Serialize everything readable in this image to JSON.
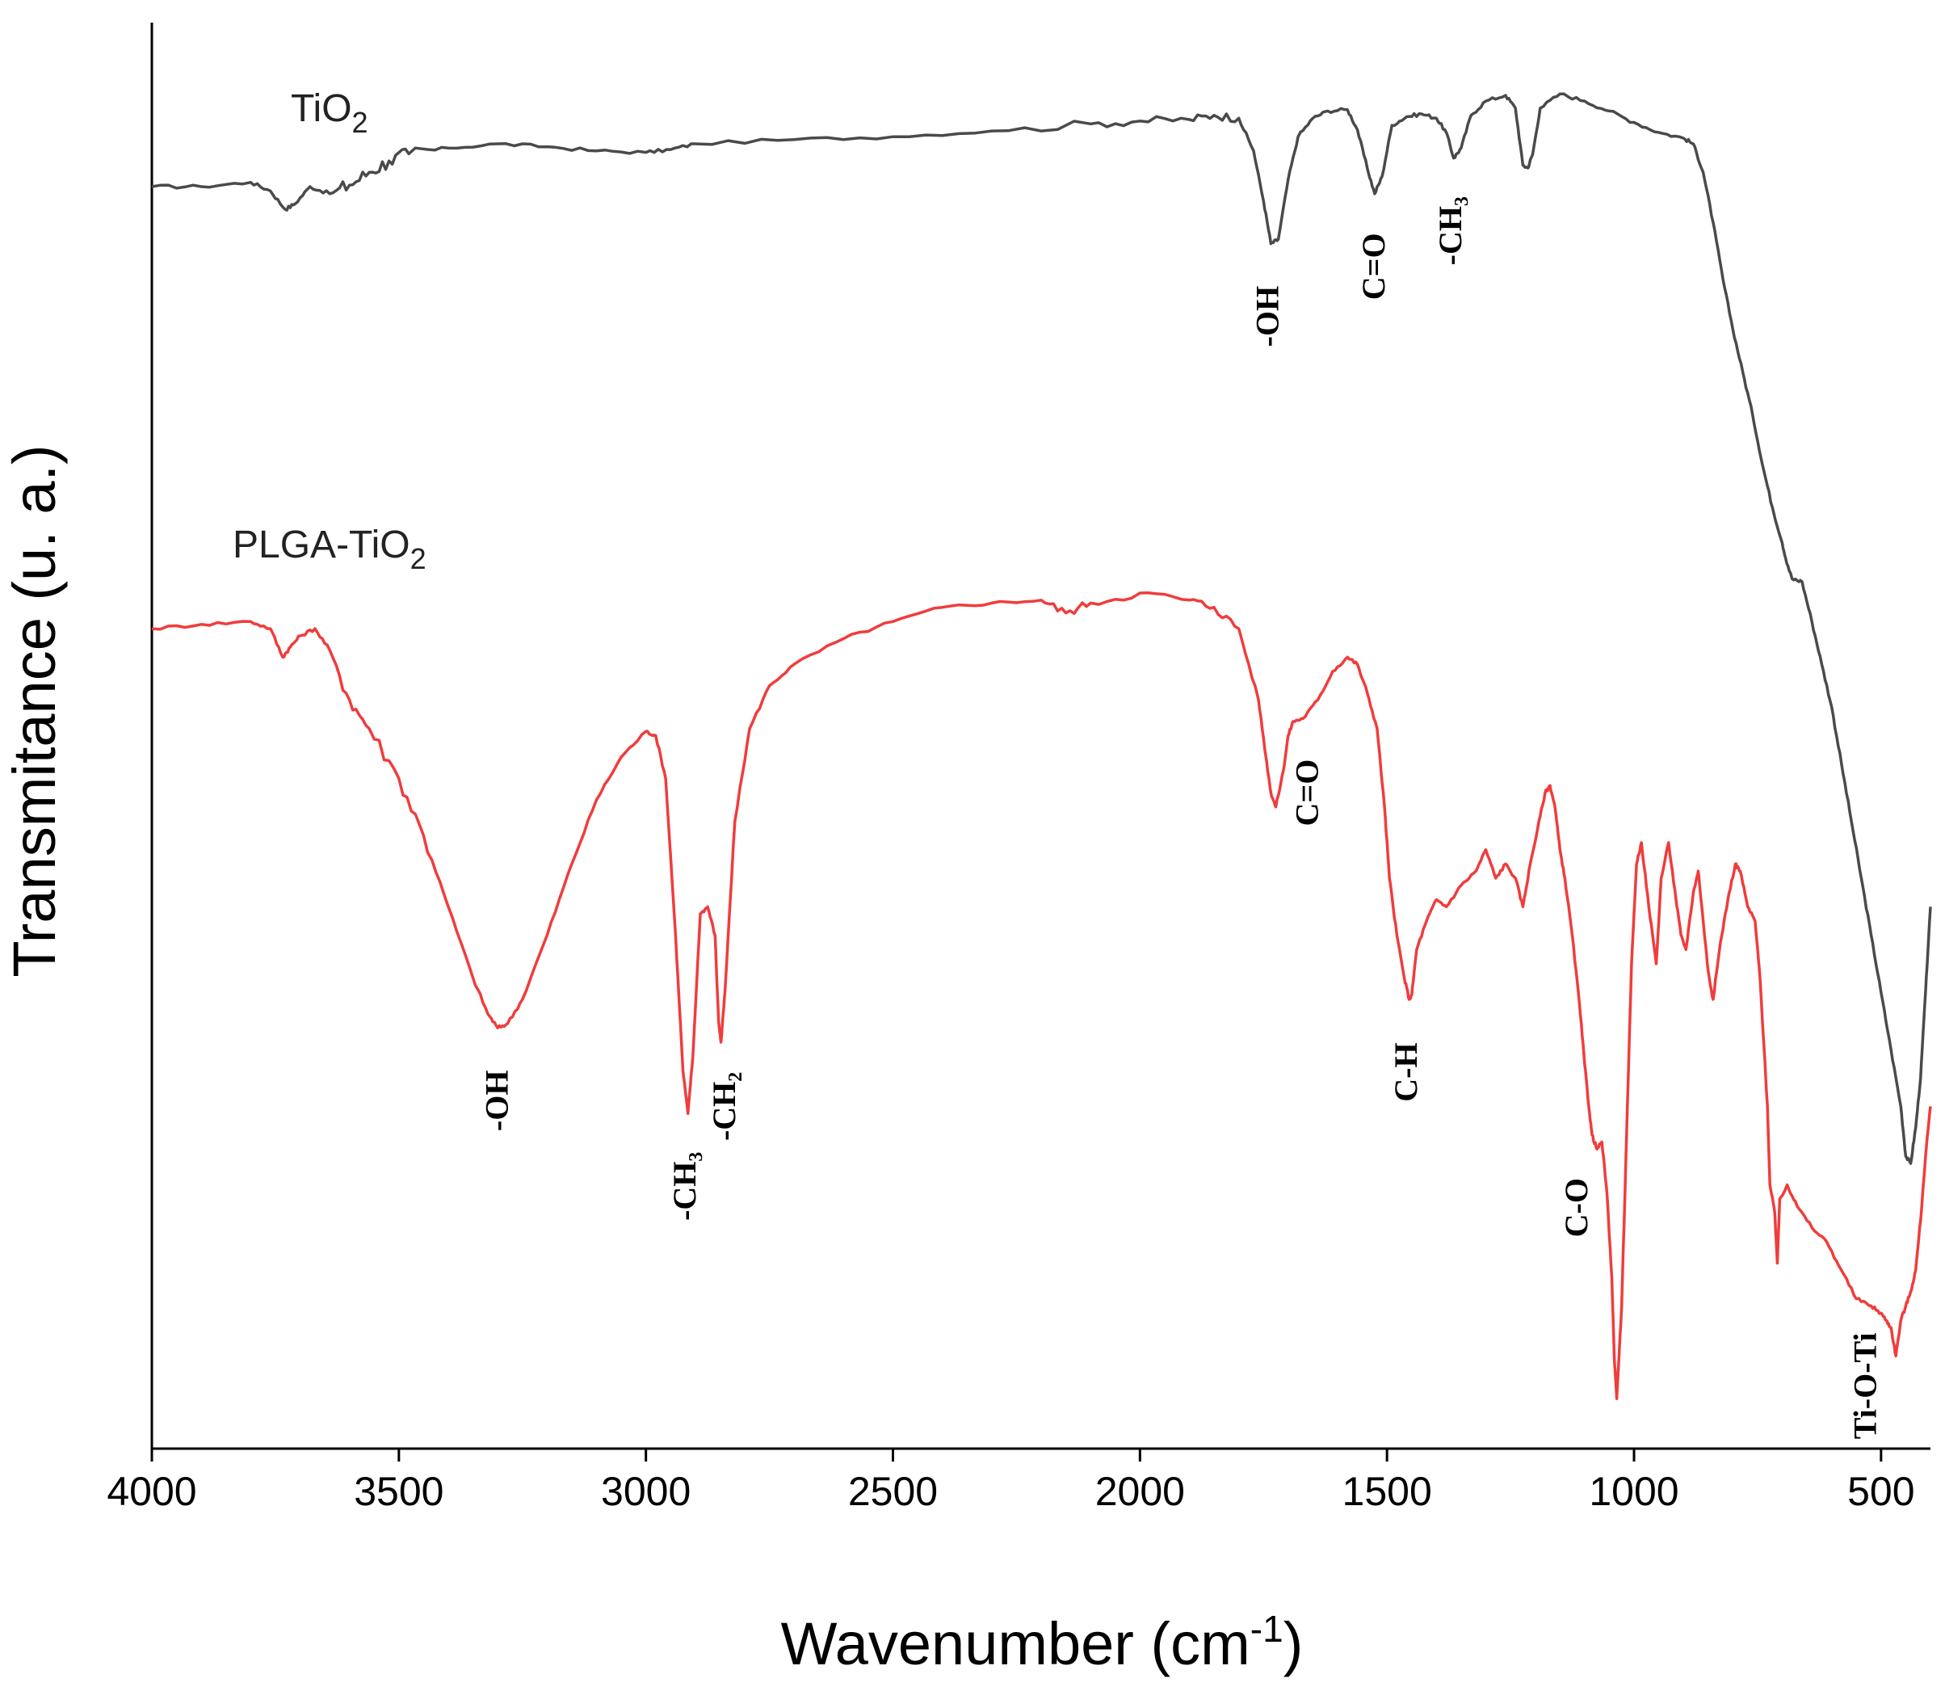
{
  "chart_data": {
    "type": "line",
    "title": "",
    "xlabel": "Wavenumber (cm",
    "xlabel_sup": "-1",
    "xlabel_close": ")",
    "ylabel": "Transmitance (u. a.)",
    "xlim": [
      4000,
      400
    ],
    "ylim": [
      0,
      100
    ],
    "x_ticks": [
      4000,
      3500,
      3000,
      2500,
      2000,
      1500,
      1000,
      500
    ],
    "x_tick_labels": [
      "4000",
      "3500",
      "3000",
      "2500",
      "2000",
      "1500",
      "1000",
      "500"
    ],
    "grid": false,
    "series": [
      {
        "name": "TiO",
        "name_sub": "2",
        "color": "#4a4a4a",
        "x": [
          4000,
          3900,
          3800,
          3760,
          3730,
          3710,
          3680,
          3640,
          3600,
          3560,
          3520,
          3480,
          3400,
          3300,
          3200,
          3100,
          3000,
          2950,
          2900,
          2700,
          2500,
          2300,
          2100,
          2000,
          1900,
          1850,
          1800,
          1770,
          1750,
          1735,
          1720,
          1700,
          1680,
          1650,
          1620,
          1580,
          1560,
          1540,
          1525,
          1510,
          1490,
          1460,
          1430,
          1400,
          1380,
          1365,
          1350,
          1330,
          1300,
          1260,
          1240,
          1225,
          1215,
          1205,
          1190,
          1150,
          1100,
          1050,
          1000,
          950,
          900,
          880,
          860,
          840,
          820,
          800,
          780,
          760,
          740,
          720,
          700,
          690,
          680,
          660,
          640,
          620,
          600,
          580,
          560,
          540,
          520,
          500,
          480,
          460,
          450,
          440,
          430,
          420,
          410,
          400
        ],
        "y": [
          88.5,
          88.5,
          88.8,
          88.2,
          86.9,
          87.3,
          88.5,
          88.0,
          88.6,
          89.5,
          90.3,
          90.8,
          91.2,
          91.5,
          91.3,
          91.0,
          90.9,
          91.1,
          91.5,
          91.8,
          92.0,
          92.4,
          92.9,
          93.1,
          93.2,
          93.5,
          93.3,
          91.0,
          87.5,
          84.5,
          84.8,
          89.0,
          92.0,
          93.3,
          93.8,
          93.9,
          92.5,
          89.8,
          88.0,
          89.2,
          92.8,
          93.4,
          93.6,
          93.3,
          92.3,
          90.5,
          91.2,
          93.5,
          94.5,
          94.9,
          94.0,
          90.0,
          89.8,
          90.8,
          94.0,
          95.0,
          94.5,
          93.8,
          93.0,
          92.3,
          91.9,
          91.5,
          89.5,
          86.0,
          82.0,
          78.5,
          75.5,
          72.5,
          69.0,
          66.0,
          63.5,
          62.0,
          61.0,
          60.8,
          58.0,
          55.0,
          52.0,
          48.0,
          44.0,
          40.0,
          36.0,
          32.0,
          28.0,
          24.0,
          20.5,
          20.0,
          22.5,
          26.0,
          32.0,
          38.0
        ]
      },
      {
        "name": "PLGA-TiO",
        "name_sub": "2",
        "color": "#f03c3c",
        "x": [
          4000,
          3900,
          3800,
          3760,
          3735,
          3720,
          3700,
          3670,
          3640,
          3600,
          3560,
          3500,
          3450,
          3400,
          3350,
          3320,
          3300,
          3280,
          3250,
          3200,
          3150,
          3100,
          3050,
          3000,
          2980,
          2960,
          2940,
          2925,
          2915,
          2905,
          2890,
          2875,
          2860,
          2853,
          2848,
          2840,
          2820,
          2790,
          2750,
          2700,
          2600,
          2500,
          2400,
          2300,
          2200,
          2150,
          2100,
          2000,
          1900,
          1850,
          1800,
          1760,
          1745,
          1735,
          1725,
          1710,
          1700,
          1690,
          1670,
          1640,
          1610,
          1580,
          1560,
          1540,
          1520,
          1505,
          1495,
          1480,
          1465,
          1455,
          1450,
          1440,
          1420,
          1400,
          1380,
          1350,
          1320,
          1300,
          1280,
          1260,
          1240,
          1225,
          1210,
          1195,
          1180,
          1170,
          1160,
          1150,
          1140,
          1125,
          1110,
          1100,
          1090,
          1085,
          1075,
          1065,
          1055,
          1045,
          1040,
          1035,
          1025,
          1015,
          1005,
          995,
          985,
          970,
          955,
          945,
          930,
          915,
          905,
          895,
          880,
          870,
          860,
          850,
          840,
          825,
          810,
          795,
          785,
          770,
          755,
          745,
          730,
          725,
          715,
          710,
          705,
          690,
          670,
          640,
          610,
          580,
          550,
          520,
          500,
          490,
          480,
          470,
          460,
          450,
          440,
          430,
          420,
          410,
          400
        ],
        "y": [
          57.5,
          57.8,
          58.0,
          57.5,
          55.5,
          56.2,
          57.0,
          57.5,
          56.0,
          52.5,
          50.5,
          47.0,
          43.0,
          38.0,
          33.0,
          30.5,
          29.5,
          29.8,
          31.5,
          36.0,
          41.0,
          45.5,
          48.5,
          50.3,
          50.0,
          47.0,
          36.0,
          26.5,
          23.5,
          27.5,
          37.5,
          38.0,
          36.0,
          30.0,
          28.5,
          32.0,
          44.0,
          50.5,
          53.5,
          55.0,
          56.8,
          58.0,
          59.0,
          59.3,
          59.5,
          58.6,
          59.3,
          60.0,
          59.5,
          59.0,
          57.5,
          52.5,
          48.5,
          46.0,
          45.0,
          47.5,
          50.0,
          51.0,
          51.2,
          52.5,
          54.5,
          55.5,
          55.0,
          53.0,
          50.5,
          45.0,
          40.0,
          36.0,
          33.0,
          31.5,
          31.8,
          35.0,
          37.0,
          38.5,
          38.0,
          39.5,
          40.5,
          42.0,
          40.0,
          41.0,
          40.0,
          38.0,
          41.0,
          43.5,
          46.0,
          46.5,
          45.0,
          42.0,
          40.0,
          36.0,
          31.0,
          27.0,
          23.5,
          22.0,
          21.0,
          21.5,
          18.0,
          12.0,
          6.5,
          3.5,
          10.0,
          22.0,
          34.0,
          41.0,
          42.5,
          38.0,
          34.0,
          40.0,
          42.5,
          38.5,
          36.0,
          35.0,
          39.0,
          40.5,
          37.0,
          33.5,
          31.5,
          35.5,
          38.5,
          41.0,
          40.5,
          38.0,
          37.0,
          33.0,
          24.0,
          18.5,
          16.5,
          13.0,
          17.5,
          18.5,
          17.0,
          15.5,
          14.5,
          12.5,
          10.5,
          10.0,
          9.5,
          9.0,
          8.5,
          6.5,
          9.0,
          10.0,
          11.0,
          12.5,
          16.0,
          20.5,
          24.0
        ]
      }
    ],
    "annotations": {
      "tio2": [
        {
          "text": "-OH",
          "x": 1735
        },
        {
          "text": "C=O",
          "x": 1520
        },
        {
          "text": "-CH₃",
          "x": 1365
        }
      ],
      "plga": [
        {
          "text": "-OH",
          "x": 3295
        },
        {
          "text": "-CH₃",
          "x": 2915
        },
        {
          "text": "-CH₂",
          "x": 2835
        },
        {
          "text": "C=O",
          "x": 1655
        },
        {
          "text": "C-H",
          "x": 1455
        },
        {
          "text": "C-O",
          "x": 1110
        },
        {
          "text": "Ti-O-Ti",
          "x": 525
        }
      ]
    }
  }
}
